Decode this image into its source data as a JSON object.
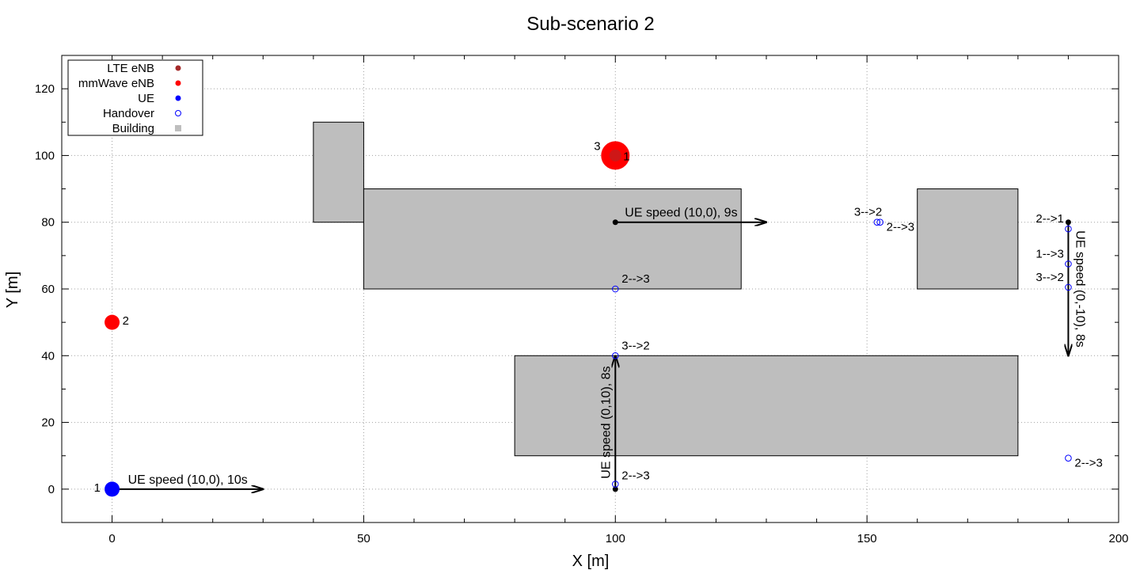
{
  "chart_data": {
    "type": "scatter",
    "title": "Sub-scenario 2",
    "xlabel": "X [m]",
    "ylabel": "Y [m]",
    "xlim": [
      -10,
      200
    ],
    "ylim": [
      -10,
      130
    ],
    "xticks": [
      0,
      50,
      100,
      150,
      200
    ],
    "yticks": [
      0,
      20,
      40,
      60,
      80,
      100,
      120
    ],
    "grid": true,
    "legend_position": "top-left",
    "legend": [
      {
        "label": "LTE eNB",
        "marker": "dot",
        "color": "#a52a2a"
      },
      {
        "label": "mmWave eNB",
        "marker": "dot",
        "color": "#ff0000"
      },
      {
        "label": "UE",
        "marker": "dot",
        "color": "#0000ff"
      },
      {
        "label": "Handover",
        "marker": "ring",
        "color": "#0000ff"
      },
      {
        "label": "Building",
        "marker": "square",
        "color": "#bebebe"
      }
    ],
    "buildings": [
      {
        "x1": 40,
        "y1": 80,
        "x2": 50,
        "y2": 110
      },
      {
        "x1": 50,
        "y1": 60,
        "x2": 125,
        "y2": 90
      },
      {
        "x1": 160,
        "y1": 60,
        "x2": 180,
        "y2": 90
      },
      {
        "x1": 80,
        "y1": 10,
        "x2": 180,
        "y2": 40
      }
    ],
    "mmwave_enbs": [
      {
        "id": "2",
        "x": 0,
        "y": 50
      },
      {
        "id": "3",
        "x": 100,
        "y": 100
      }
    ],
    "lte_enbs": [
      {
        "id": "1",
        "x": 100,
        "y": 100
      }
    ],
    "ues": [
      {
        "id": "1",
        "x": 0,
        "y": 0
      }
    ],
    "trajectories": [
      {
        "start": [
          0,
          0
        ],
        "end": [
          30,
          0
        ],
        "label": "UE speed (10,0), 10s",
        "start_dot": false
      },
      {
        "start": [
          100,
          0
        ],
        "end": [
          100,
          40
        ],
        "label": "UE speed (0,10), 8s",
        "start_dot": true
      },
      {
        "start": [
          100,
          80
        ],
        "end": [
          130,
          80
        ],
        "label": "UE speed (10,0), 9s",
        "start_dot": true
      },
      {
        "start": [
          190,
          80
        ],
        "end": [
          190,
          40
        ],
        "label": "UE speed (0,-10), 8s",
        "start_dot": true
      }
    ],
    "handovers": [
      {
        "x": 100,
        "y": 1.5,
        "label": "2-->3"
      },
      {
        "x": 100,
        "y": 40,
        "label": "3-->2"
      },
      {
        "x": 100,
        "y": 60,
        "label": "2-->3"
      },
      {
        "x": 152,
        "y": 80,
        "label": "3-->2"
      },
      {
        "x": 152.6,
        "y": 80,
        "label": "2-->3"
      },
      {
        "x": 190,
        "y": 78,
        "label": "2-->1"
      },
      {
        "x": 190,
        "y": 67.5,
        "label": "1-->3"
      },
      {
        "x": 190,
        "y": 60.5,
        "label": "3-->2"
      },
      {
        "x": 190,
        "y": 9.3,
        "label": "2-->3"
      }
    ]
  }
}
